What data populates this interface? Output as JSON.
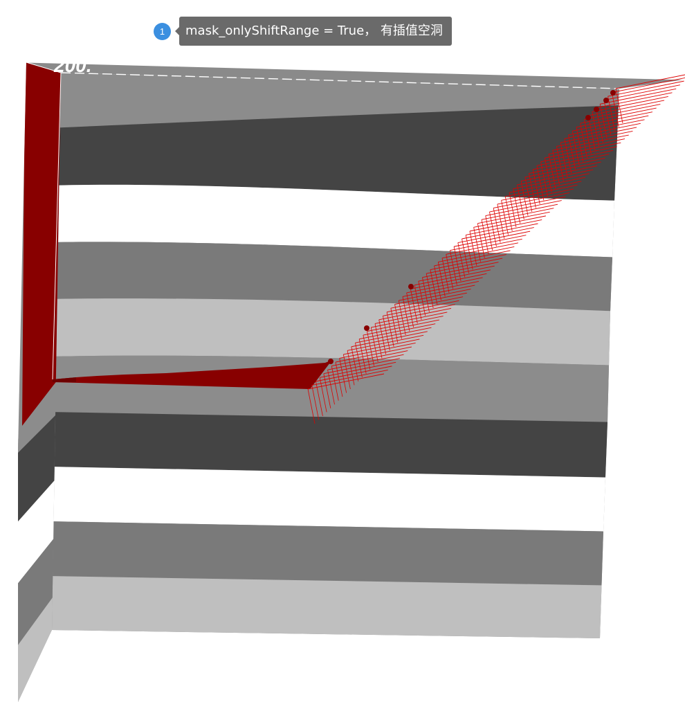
{
  "annotation": {
    "number": "1",
    "text": "mask_onlyShiftRange = True， 有插值空洞",
    "badge_color": "#3b8fe0",
    "bubble_color": "#6a6a6a"
  },
  "scene": {
    "axis_label": "200.",
    "colors": {
      "mask_fill": "#880000",
      "ray_line": "#dd0000",
      "stripes": [
        "#8c8c8c",
        "#444444",
        "#ffffff",
        "#7a7a7a",
        "#bfbfbf"
      ]
    }
  }
}
